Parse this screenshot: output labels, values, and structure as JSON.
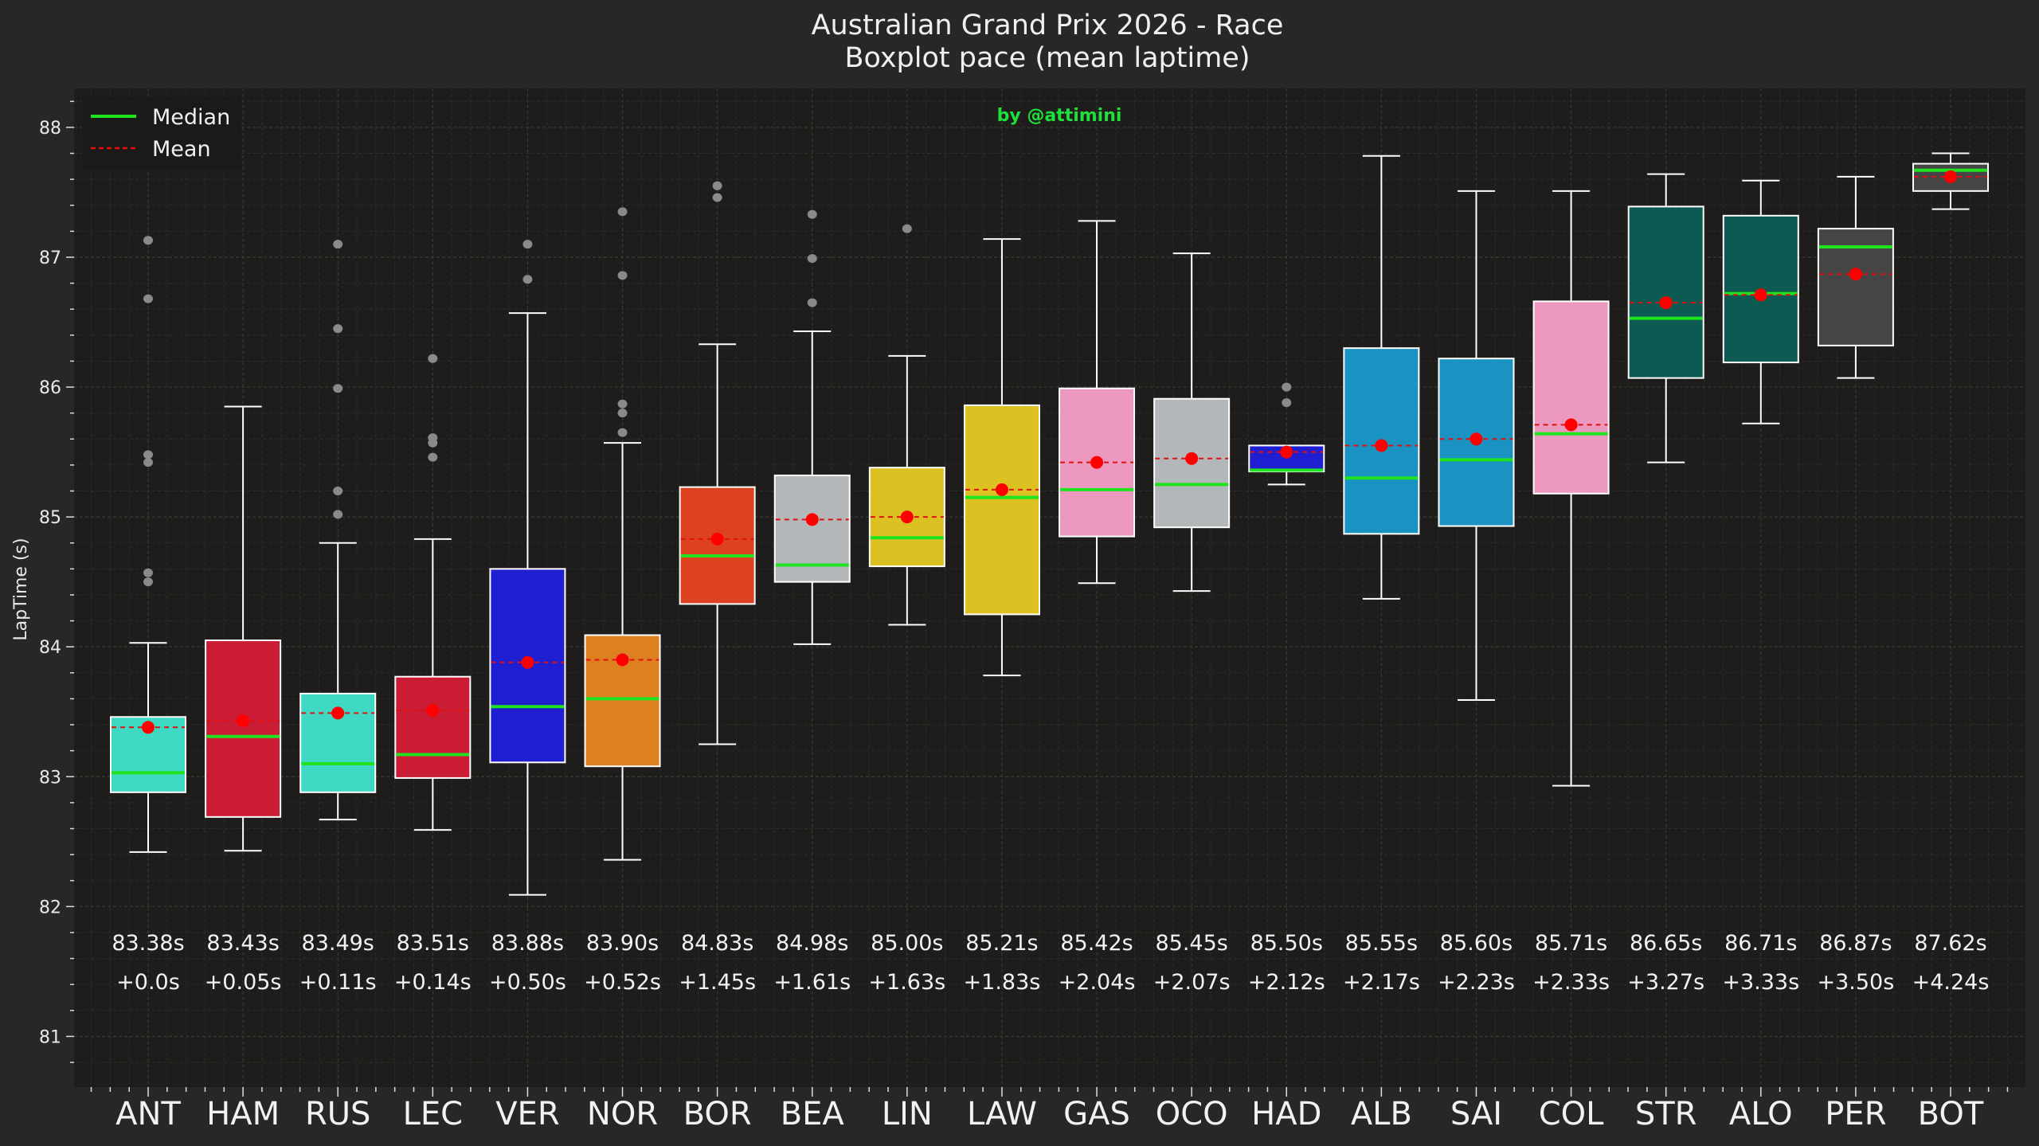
{
  "chart_data": {
    "type": "boxplot",
    "title": "Australian Grand Prix 2026 - Race",
    "subtitle": "Boxplot pace (mean laptime)",
    "watermark": "by @attimini",
    "xlabel": "",
    "ylabel": "LapTime (s)",
    "ylim": [
      80.61,
      88.3
    ],
    "yticks": [
      81,
      82,
      83,
      84,
      85,
      86,
      87,
      88
    ],
    "ytick_labels": [
      "81",
      "82",
      "83",
      "84",
      "85",
      "86",
      "87",
      "88"
    ],
    "grid": true,
    "legend": {
      "placement": "top-left",
      "entries": [
        {
          "label": "Median",
          "color": "#1fe31f",
          "style": "solid"
        },
        {
          "label": "Mean",
          "color": "#e01010",
          "style": "dashed"
        }
      ]
    },
    "colors": {
      "background": "#282725",
      "plot_background": "#1e1d1b",
      "median": "#1fe31f",
      "mean": "#ff0000",
      "outlier": "#8a8a8a",
      "box_edge": "#ffffff"
    },
    "categories": [
      "ANT",
      "HAM",
      "RUS",
      "LEC",
      "VER",
      "NOR",
      "BOR",
      "BEA",
      "LIN",
      "LAW",
      "GAS",
      "OCO",
      "HAD",
      "ALB",
      "SAI",
      "COL",
      "STR",
      "ALO",
      "PER",
      "BOT"
    ],
    "series": [
      {
        "driver": "ANT",
        "color": "#3fd8c2",
        "whislo": 82.42,
        "q1": 82.88,
        "median": 83.03,
        "q3": 83.46,
        "whishi": 84.03,
        "mean": 83.38,
        "outliers": [
          87.13,
          86.68,
          85.48,
          85.42,
          84.57,
          84.5
        ],
        "mean_label": "83.38s",
        "gap_label": "+0.0s"
      },
      {
        "driver": "HAM",
        "color": "#cb1c36",
        "whislo": 82.43,
        "q1": 82.69,
        "median": 83.31,
        "q3": 84.05,
        "whishi": 85.85,
        "mean": 83.43,
        "outliers": [],
        "mean_label": "83.43s",
        "gap_label": "+0.05s"
      },
      {
        "driver": "RUS",
        "color": "#3fd8c2",
        "whislo": 82.67,
        "q1": 82.88,
        "median": 83.1,
        "q3": 83.64,
        "whishi": 84.8,
        "mean": 83.49,
        "outliers": [
          87.1,
          86.45,
          85.99,
          85.2,
          85.02
        ],
        "mean_label": "83.49s",
        "gap_label": "+0.11s"
      },
      {
        "driver": "LEC",
        "color": "#cb1c36",
        "whislo": 82.59,
        "q1": 82.99,
        "median": 83.17,
        "q3": 83.77,
        "whishi": 84.83,
        "mean": 83.51,
        "outliers": [
          86.22,
          85.61,
          85.57,
          85.46
        ],
        "mean_label": "83.51s",
        "gap_label": "+0.14s"
      },
      {
        "driver": "VER",
        "color": "#1f1fd1",
        "whislo": 82.09,
        "q1": 83.11,
        "median": 83.54,
        "q3": 84.6,
        "whishi": 86.57,
        "mean": 83.88,
        "outliers": [
          87.1,
          86.83
        ],
        "mean_label": "83.88s",
        "gap_label": "+0.50s"
      },
      {
        "driver": "NOR",
        "color": "#de8020",
        "whislo": 82.36,
        "q1": 83.08,
        "median": 83.6,
        "q3": 84.09,
        "whishi": 85.57,
        "mean": 83.9,
        "outliers": [
          87.35,
          86.86,
          85.87,
          85.8,
          85.65
        ],
        "mean_label": "83.90s",
        "gap_label": "+0.52s"
      },
      {
        "driver": "BOR",
        "color": "#dc4120",
        "whislo": 83.25,
        "q1": 84.33,
        "median": 84.7,
        "q3": 85.23,
        "whishi": 86.33,
        "mean": 84.83,
        "outliers": [
          87.55,
          87.46
        ],
        "mean_label": "84.83s",
        "gap_label": "+1.45s"
      },
      {
        "driver": "BEA",
        "color": "#b4b7b9",
        "whislo": 84.02,
        "q1": 84.5,
        "median": 84.63,
        "q3": 85.32,
        "whishi": 86.43,
        "mean": 84.98,
        "outliers": [
          87.33,
          86.99,
          86.65
        ],
        "mean_label": "84.98s",
        "gap_label": "+1.61s"
      },
      {
        "driver": "LIN",
        "color": "#dbc222",
        "whislo": 84.17,
        "q1": 84.62,
        "median": 84.84,
        "q3": 85.38,
        "whishi": 86.24,
        "mean": 85.0,
        "outliers": [
          87.22
        ],
        "mean_label": "85.00s",
        "gap_label": "+1.63s"
      },
      {
        "driver": "LAW",
        "color": "#dbc222",
        "whislo": 83.78,
        "q1": 84.25,
        "median": 85.15,
        "q3": 85.86,
        "whishi": 87.14,
        "mean": 85.21,
        "outliers": [],
        "mean_label": "85.21s",
        "gap_label": "+1.83s"
      },
      {
        "driver": "GAS",
        "color": "#ec98bf",
        "whislo": 84.49,
        "q1": 84.85,
        "median": 85.21,
        "q3": 85.99,
        "whishi": 87.28,
        "mean": 85.42,
        "outliers": [],
        "mean_label": "85.42s",
        "gap_label": "+2.04s"
      },
      {
        "driver": "OCO",
        "color": "#b4b7b9",
        "whislo": 84.43,
        "q1": 84.92,
        "median": 85.25,
        "q3": 85.91,
        "whishi": 87.03,
        "mean": 85.45,
        "outliers": [],
        "mean_label": "85.45s",
        "gap_label": "+2.07s"
      },
      {
        "driver": "HAD",
        "color": "#1f1fd1",
        "whislo": 85.25,
        "q1": 85.35,
        "median": 85.36,
        "q3": 85.55,
        "whishi": 85.55,
        "mean": 85.5,
        "outliers": [
          86.0,
          85.88
        ],
        "mean_label": "85.50s",
        "gap_label": "+2.12s"
      },
      {
        "driver": "ALB",
        "color": "#1b93c2",
        "whislo": 84.37,
        "q1": 84.87,
        "median": 85.3,
        "q3": 86.3,
        "whishi": 87.78,
        "mean": 85.55,
        "outliers": [],
        "mean_label": "85.55s",
        "gap_label": "+2.17s"
      },
      {
        "driver": "SAI",
        "color": "#1b93c2",
        "whislo": 83.59,
        "q1": 84.93,
        "median": 85.44,
        "q3": 86.22,
        "whishi": 87.51,
        "mean": 85.6,
        "outliers": [],
        "mean_label": "85.60s",
        "gap_label": "+2.23s"
      },
      {
        "driver": "COL",
        "color": "#ec98bf",
        "whislo": 82.93,
        "q1": 85.18,
        "median": 85.64,
        "q3": 86.66,
        "whishi": 87.51,
        "mean": 85.71,
        "outliers": [],
        "mean_label": "85.71s",
        "gap_label": "+2.33s"
      },
      {
        "driver": "STR",
        "color": "#0d5a52",
        "whislo": 85.42,
        "q1": 86.07,
        "median": 86.53,
        "q3": 87.39,
        "whishi": 87.64,
        "mean": 86.65,
        "outliers": [],
        "mean_label": "86.65s",
        "gap_label": "+3.27s"
      },
      {
        "driver": "ALO",
        "color": "#0d5a52",
        "whislo": 85.72,
        "q1": 86.19,
        "median": 86.72,
        "q3": 87.32,
        "whishi": 87.59,
        "mean": 86.71,
        "outliers": [],
        "mean_label": "86.71s",
        "gap_label": "+3.33s"
      },
      {
        "driver": "PER",
        "color": "#454545",
        "whislo": 86.07,
        "q1": 86.32,
        "median": 87.08,
        "q3": 87.22,
        "whishi": 87.62,
        "mean": 86.87,
        "outliers": [],
        "mean_label": "86.87s",
        "gap_label": "+3.50s"
      },
      {
        "driver": "BOT",
        "color": "#454545",
        "whislo": 87.37,
        "q1": 87.51,
        "median": 87.67,
        "q3": 87.72,
        "whishi": 87.8,
        "mean": 87.62,
        "outliers": [],
        "mean_label": "87.62s",
        "gap_label": "+4.24s"
      }
    ]
  }
}
